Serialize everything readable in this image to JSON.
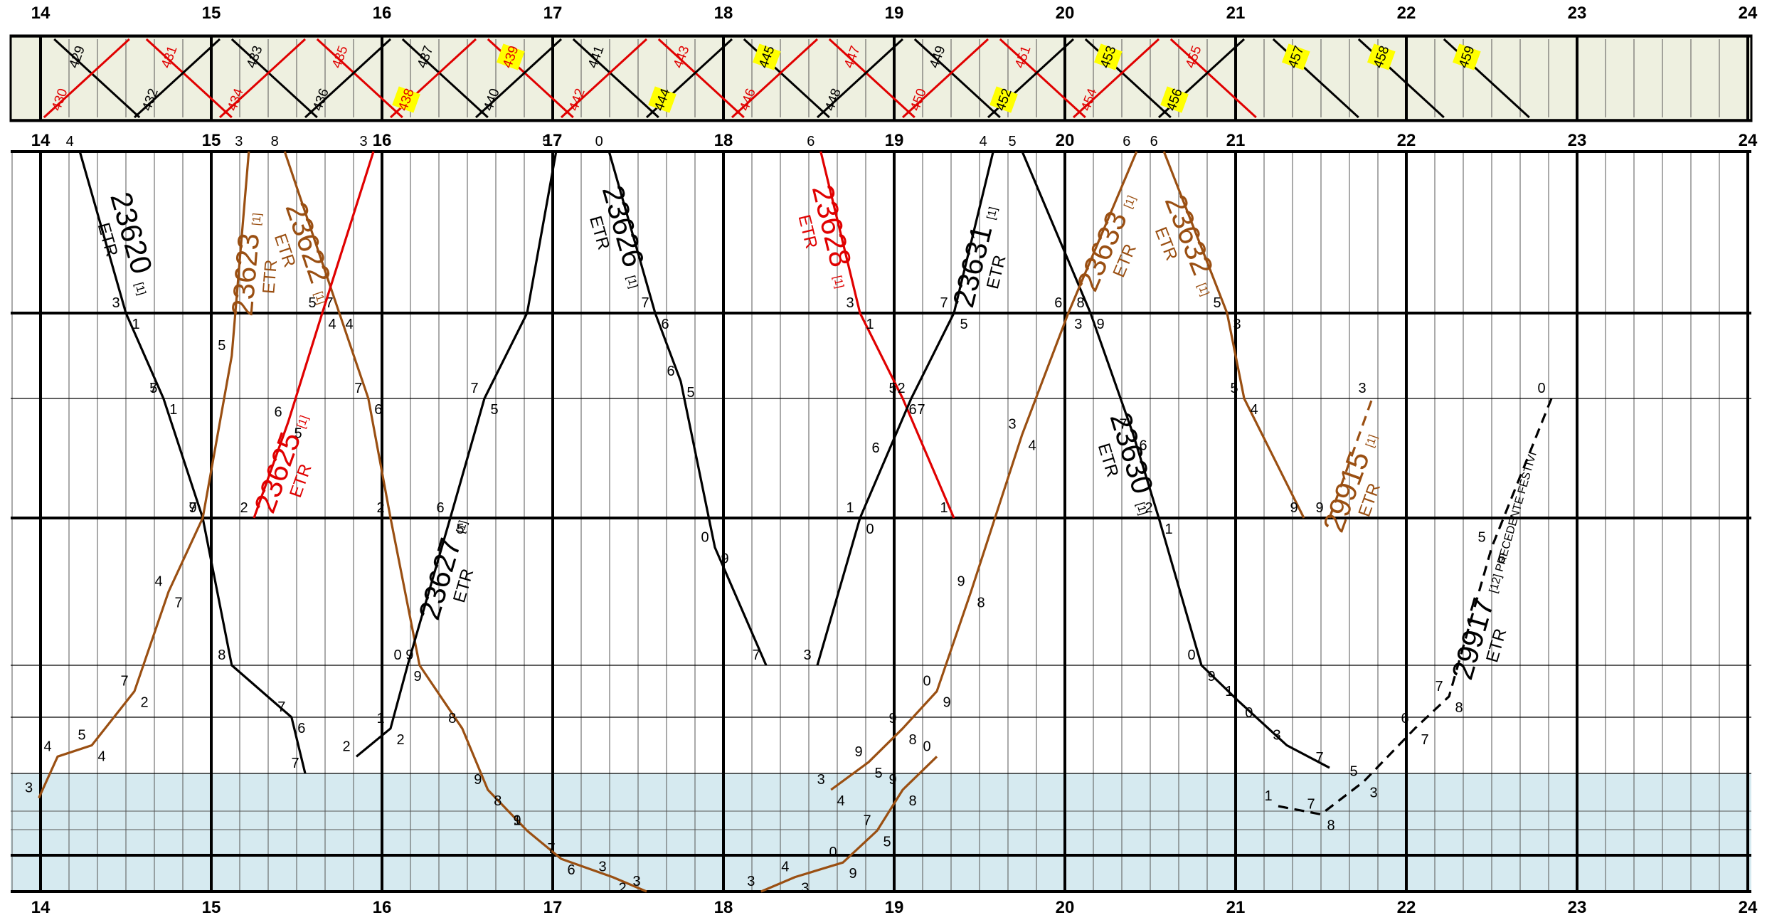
{
  "graph": {
    "hours": [
      "14",
      "15",
      "16",
      "17",
      "18",
      "19",
      "20",
      "21",
      "22",
      "23",
      "24"
    ]
  },
  "codes": [
    {
      "t": "429",
      "hr": 14.08,
      "up": true,
      "c": "#000000",
      "hl": false
    },
    {
      "t": "430",
      "hr": 14.02,
      "up": false,
      "c": "#e00000",
      "hl": false
    },
    {
      "t": "431",
      "hr": 14.62,
      "up": true,
      "c": "#e00000",
      "hl": false
    },
    {
      "t": "432",
      "hr": 14.55,
      "up": false,
      "c": "#000000",
      "hl": false
    },
    {
      "t": "433",
      "hr": 15.12,
      "up": true,
      "c": "#000000",
      "hl": false
    },
    {
      "t": "434",
      "hr": 15.05,
      "up": false,
      "c": "#e00000",
      "hl": false
    },
    {
      "t": "435",
      "hr": 15.62,
      "up": true,
      "c": "#e00000",
      "hl": false
    },
    {
      "t": "436",
      "hr": 15.55,
      "up": false,
      "c": "#000000",
      "hl": false
    },
    {
      "t": "437",
      "hr": 16.12,
      "up": true,
      "c": "#000000",
      "hl": false
    },
    {
      "t": "438",
      "hr": 16.05,
      "up": false,
      "c": "#e00000",
      "hl": true
    },
    {
      "t": "439",
      "hr": 16.62,
      "up": true,
      "c": "#e00000",
      "hl": true
    },
    {
      "t": "440",
      "hr": 16.55,
      "up": false,
      "c": "#000000",
      "hl": false
    },
    {
      "t": "441",
      "hr": 17.12,
      "up": true,
      "c": "#000000",
      "hl": false
    },
    {
      "t": "442",
      "hr": 17.05,
      "up": false,
      "c": "#e00000",
      "hl": false
    },
    {
      "t": "443",
      "hr": 17.62,
      "up": true,
      "c": "#e00000",
      "hl": false
    },
    {
      "t": "444",
      "hr": 17.55,
      "up": false,
      "c": "#000000",
      "hl": true
    },
    {
      "t": "445",
      "hr": 18.12,
      "up": true,
      "c": "#000000",
      "hl": true
    },
    {
      "t": "446",
      "hr": 18.05,
      "up": false,
      "c": "#e00000",
      "hl": false
    },
    {
      "t": "447",
      "hr": 18.62,
      "up": true,
      "c": "#e00000",
      "hl": false
    },
    {
      "t": "448",
      "hr": 18.55,
      "up": false,
      "c": "#000000",
      "hl": false
    },
    {
      "t": "449",
      "hr": 19.12,
      "up": true,
      "c": "#000000",
      "hl": false
    },
    {
      "t": "450",
      "hr": 19.05,
      "up": false,
      "c": "#e00000",
      "hl": false
    },
    {
      "t": "451",
      "hr": 19.62,
      "up": true,
      "c": "#e00000",
      "hl": false
    },
    {
      "t": "452",
      "hr": 19.55,
      "up": false,
      "c": "#000000",
      "hl": true
    },
    {
      "t": "453",
      "hr": 20.12,
      "up": true,
      "c": "#000000",
      "hl": true
    },
    {
      "t": "454",
      "hr": 20.05,
      "up": false,
      "c": "#e00000",
      "hl": false
    },
    {
      "t": "455",
      "hr": 20.62,
      "up": true,
      "c": "#e00000",
      "hl": false
    },
    {
      "t": "456",
      "hr": 20.55,
      "up": false,
      "c": "#000000",
      "hl": true
    },
    {
      "t": "457",
      "hr": 21.22,
      "up": true,
      "c": "#000000",
      "hl": true
    },
    {
      "t": "458",
      "hr": 21.72,
      "up": true,
      "c": "#000000",
      "hl": true
    },
    {
      "t": "459",
      "hr": 22.22,
      "up": true,
      "c": "#000000",
      "hl": true
    }
  ],
  "trains": [
    {
      "id": "23620",
      "c": "#000000",
      "dash": false,
      "pts": [
        [
          14.23,
          0
        ],
        [
          14.5,
          1
        ],
        [
          14.72,
          2
        ],
        [
          14.95,
          3
        ],
        [
          15.12,
          4
        ],
        [
          15.47,
          5
        ],
        [
          15.55,
          6
        ]
      ],
      "mins": [
        {
          "t": "4",
          "i": 0
        },
        {
          "t": "3",
          "i": 1
        },
        {
          "t": "1",
          "i": 1
        },
        {
          "t": "5",
          "i": 2
        },
        {
          "t": "1",
          "i": 2
        },
        {
          "t": "7",
          "i": 2
        },
        {
          "t": "9",
          "i": 3
        },
        {
          "t": "8",
          "i": 4
        },
        {
          "t": "7",
          "i": 5
        },
        {
          "t": "6",
          "i": 5
        },
        {
          "t": "7",
          "i": 6
        }
      ],
      "label": {
        "num": "23620",
        "suf": "ETR",
        "note": "[1]",
        "seg": 0,
        "fr": 0.55,
        "side": -1
      }
    },
    {
      "id": "23623",
      "c": "#9a4f12",
      "dash": false,
      "pts": [
        [
          13.99,
          6.3
        ],
        [
          14.1,
          5.7
        ],
        [
          14.3,
          5.5
        ],
        [
          14.55,
          4.5
        ],
        [
          14.75,
          3.5
        ],
        [
          14.95,
          3
        ],
        [
          15.12,
          1.5
        ],
        [
          15.22,
          0
        ]
      ],
      "mins": [
        {
          "t": "3",
          "i": 0
        },
        {
          "t": "4",
          "i": 1
        },
        {
          "t": "5",
          "i": 2
        },
        {
          "t": "4",
          "i": 2
        },
        {
          "t": "7",
          "i": 3
        },
        {
          "t": "2",
          "i": 3
        },
        {
          "t": "4",
          "i": 4
        },
        {
          "t": "7",
          "i": 4
        },
        {
          "t": "7",
          "i": 5
        },
        {
          "t": "5",
          "i": 6
        },
        {
          "t": "3",
          "i": 7
        }
      ],
      "label": {
        "num": "23623",
        "suf": "ETR",
        "note": "[1]",
        "seg": 6,
        "fr": 0.4,
        "side": 1
      }
    },
    {
      "id": "23622",
      "c": "#9a4f12",
      "dash": false,
      "pts": [
        [
          15.43,
          0
        ],
        [
          15.75,
          1
        ],
        [
          15.92,
          2
        ],
        [
          16.05,
          3
        ],
        [
          16.22,
          4
        ],
        [
          16.47,
          5.2
        ],
        [
          16.62,
          6.2
        ],
        [
          16.85,
          6.7
        ]
      ],
      "mins": [
        {
          "t": "8",
          "i": 0
        },
        {
          "t": "7",
          "i": 1
        },
        {
          "t": "4",
          "i": 1
        },
        {
          "t": "7",
          "i": 2
        },
        {
          "t": "6",
          "i": 2
        },
        {
          "t": "2",
          "i": 3
        },
        {
          "t": "9",
          "i": 4
        },
        {
          "t": "8",
          "i": 5
        },
        {
          "t": "9",
          "i": 6
        },
        {
          "t": "8",
          "i": 6
        },
        {
          "t": "1",
          "i": 7
        }
      ],
      "label": {
        "num": "23622",
        "suf": "ETR",
        "note": "[1]",
        "seg": 0,
        "fr": 0.55,
        "side": 1
      }
    },
    {
      "id": "23625",
      "c": "#e00000",
      "dash": false,
      "pts": [
        [
          15.95,
          0
        ],
        [
          15.65,
          1
        ],
        [
          15.45,
          2.2
        ],
        [
          15.25,
          3
        ]
      ],
      "mins": [
        {
          "t": "3",
          "i": 0
        },
        {
          "t": "5",
          "i": 1
        },
        {
          "t": "4",
          "i": 1
        },
        {
          "t": "6",
          "i": 2
        },
        {
          "t": "5",
          "i": 2
        },
        {
          "t": "2",
          "i": 3
        }
      ],
      "label": {
        "num": "23625",
        "suf": "ETR",
        "note": "[1]",
        "seg": 2,
        "fr": 0.5,
        "side": 1
      }
    },
    {
      "id": "23627",
      "c": "#000000",
      "dash": false,
      "pts": [
        [
          15.85,
          5.7
        ],
        [
          16.05,
          5.2
        ],
        [
          16.15,
          4
        ],
        [
          16.4,
          3
        ],
        [
          16.6,
          2
        ],
        [
          16.85,
          1
        ],
        [
          17.02,
          0
        ]
      ],
      "mins": [
        {
          "t": "2",
          "i": 0
        },
        {
          "t": "1",
          "i": 1
        },
        {
          "t": "2",
          "i": 1
        },
        {
          "t": "0",
          "i": 2
        },
        {
          "t": "9",
          "i": 2
        },
        {
          "t": "6",
          "i": 3
        },
        {
          "t": "5",
          "i": 3
        },
        {
          "t": "7",
          "i": 4
        },
        {
          "t": "5",
          "i": 4
        },
        {
          "t": "5",
          "i": 6
        }
      ],
      "label": {
        "num": "23627",
        "suf": "ETR",
        "note": "[1]",
        "seg": 2,
        "fr": 0.6,
        "side": 1
      }
    },
    {
      "id": "23626",
      "c": "#000000",
      "dash": false,
      "pts": [
        [
          17.33,
          0
        ],
        [
          17.6,
          1
        ],
        [
          17.75,
          1.8
        ],
        [
          17.95,
          3.2
        ],
        [
          18.25,
          4
        ]
      ],
      "mins": [
        {
          "t": "0",
          "i": 0
        },
        {
          "t": "7",
          "i": 1
        },
        {
          "t": "6",
          "i": 1
        },
        {
          "t": "6",
          "i": 2
        },
        {
          "t": "5",
          "i": 2
        },
        {
          "t": "0",
          "i": 3
        },
        {
          "t": "9",
          "i": 3
        },
        {
          "t": "7",
          "i": 4
        }
      ],
      "label": {
        "num": "23626",
        "suf": "ETR",
        "note": "[1]",
        "seg": 0,
        "fr": 0.45,
        "side": 1
      }
    },
    {
      "id": "23628",
      "c": "#e00000",
      "dash": false,
      "pts": [
        [
          18.57,
          0
        ],
        [
          18.8,
          1
        ],
        [
          19.05,
          2
        ],
        [
          19.35,
          3
        ]
      ],
      "mins": [
        {
          "t": "6",
          "i": 0
        },
        {
          "t": "3",
          "i": 1
        },
        {
          "t": "1",
          "i": 1
        },
        {
          "t": "5",
          "i": 2
        },
        {
          "t": "6",
          "i": 2
        },
        {
          "t": "1",
          "i": 3
        }
      ],
      "label": {
        "num": "23628",
        "suf": "ETR",
        "note": "[1]",
        "seg": 0,
        "fr": 0.45,
        "side": 1
      }
    },
    {
      "id": "23631",
      "c": "#000000",
      "dash": false,
      "pts": [
        [
          18.55,
          4
        ],
        [
          18.8,
          3
        ],
        [
          18.95,
          2.5
        ],
        [
          19.1,
          2
        ],
        [
          19.35,
          1
        ],
        [
          19.58,
          0
        ]
      ],
      "mins": [
        {
          "t": "3",
          "i": 0
        },
        {
          "t": "1",
          "i": 1
        },
        {
          "t": "0",
          "i": 1
        },
        {
          "t": "6",
          "i": 2
        },
        {
          "t": "2",
          "i": 3
        },
        {
          "t": "7",
          "i": 3
        },
        {
          "t": "7",
          "i": 4
        },
        {
          "t": "5",
          "i": 4
        },
        {
          "t": "4",
          "i": 5
        }
      ],
      "label": {
        "num": "23631",
        "suf": "ETR",
        "note": "[1]",
        "seg": 4,
        "fr": 0.3,
        "side": 1
      }
    },
    {
      "id": "23630",
      "c": "#000000",
      "dash": false,
      "pts": [
        [
          19.75,
          0
        ],
        [
          20.15,
          1
        ],
        [
          20.4,
          2.3
        ],
        [
          20.55,
          3
        ],
        [
          20.8,
          4
        ],
        [
          21.02,
          4.7
        ],
        [
          21.3,
          5.5
        ],
        [
          21.55,
          5.9
        ]
      ],
      "mins": [
        {
          "t": "5",
          "i": 0
        },
        {
          "t": "8",
          "i": 1
        },
        {
          "t": "9",
          "i": 1
        },
        {
          "t": "7",
          "i": 2
        },
        {
          "t": "6",
          "i": 2
        },
        {
          "t": "2",
          "i": 3
        },
        {
          "t": "1",
          "i": 3
        },
        {
          "t": "0",
          "i": 4
        },
        {
          "t": "9",
          "i": 4
        },
        {
          "t": "1",
          "i": 5
        },
        {
          "t": "0",
          "i": 5
        },
        {
          "t": "3",
          "i": 6
        },
        {
          "t": "7",
          "i": 7
        }
      ],
      "label": {
        "num": "23630",
        "suf": "ETR",
        "note": "[1]",
        "seg": 2,
        "fr": 0.2,
        "side": 1
      }
    },
    {
      "id": "23633",
      "c": "#9a4f12",
      "dash": false,
      "pts": [
        [
          18.63,
          6.2
        ],
        [
          18.85,
          5.8
        ],
        [
          19.05,
          5.2
        ],
        [
          19.25,
          4.5
        ],
        [
          19.45,
          3.5
        ],
        [
          19.75,
          2.3
        ],
        [
          20.02,
          1
        ],
        [
          20.42,
          0
        ]
      ],
      "mins": [
        {
          "t": "3",
          "i": 0
        },
        {
          "t": "4",
          "i": 0
        },
        {
          "t": "9",
          "i": 1
        },
        {
          "t": "5",
          "i": 1
        },
        {
          "t": "9",
          "i": 2
        },
        {
          "t": "8",
          "i": 2
        },
        {
          "t": "0",
          "i": 3
        },
        {
          "t": "9",
          "i": 3
        },
        {
          "t": "9",
          "i": 4
        },
        {
          "t": "8",
          "i": 4
        },
        {
          "t": "3",
          "i": 5
        },
        {
          "t": "4",
          "i": 5
        },
        {
          "t": "6",
          "i": 6
        },
        {
          "t": "3",
          "i": 6
        },
        {
          "t": "6",
          "i": 7
        }
      ],
      "label": {
        "num": "23633",
        "suf": "ETR",
        "note": "[1]",
        "seg": 6,
        "fr": 0.4,
        "side": 1
      }
    },
    {
      "id": "23632",
      "c": "#9a4f12",
      "dash": false,
      "pts": [
        [
          20.58,
          0
        ],
        [
          20.95,
          1
        ],
        [
          21.05,
          2
        ],
        [
          21.4,
          3
        ]
      ],
      "mins": [
        {
          "t": "6",
          "i": 0
        },
        {
          "t": "5",
          "i": 1
        },
        {
          "t": "3",
          "i": 1
        },
        {
          "t": "5",
          "i": 2
        },
        {
          "t": "4",
          "i": 2
        },
        {
          "t": "9",
          "i": 3
        }
      ],
      "label": {
        "num": "23632",
        "suf": "ETR",
        "note": "[1]",
        "seg": 0,
        "fr": 0.5,
        "side": 1
      }
    },
    {
      "id": "29915",
      "c": "#9a4f12",
      "dash": true,
      "pts": [
        [
          21.55,
          3
        ],
        [
          21.75,
          2.2
        ],
        [
          21.8,
          2
        ]
      ],
      "mins": [
        {
          "t": "9",
          "i": 0
        },
        {
          "t": "3",
          "i": 2
        }
      ],
      "label": {
        "num": "29915",
        "suf": "ETR",
        "note": "[1]",
        "seg": 0,
        "fr": 0.3,
        "side": 1
      }
    },
    {
      "id": "29917",
      "c": "#000000",
      "dash": true,
      "pts": [
        [
          21.25,
          6.4
        ],
        [
          21.5,
          6.5
        ],
        [
          21.75,
          6.1
        ],
        [
          22.05,
          5.2
        ],
        [
          22.25,
          4.6
        ],
        [
          22.5,
          3.2
        ],
        [
          22.85,
          2
        ]
      ],
      "mins": [
        {
          "t": "1",
          "i": 0
        },
        {
          "t": "7",
          "i": 1
        },
        {
          "t": "8",
          "i": 1
        },
        {
          "t": "5",
          "i": 2
        },
        {
          "t": "3",
          "i": 2
        },
        {
          "t": "6",
          "i": 3
        },
        {
          "t": "7",
          "i": 3
        },
        {
          "t": "7",
          "i": 4
        },
        {
          "t": "8",
          "i": 4
        },
        {
          "t": "5",
          "i": 5
        },
        {
          "t": "6",
          "i": 5
        },
        {
          "t": "0",
          "i": 6
        }
      ],
      "label": {
        "num": "29917",
        "suf": "ETR",
        "note": "[12] PRECEDENTE FESTIVI",
        "seg": 4,
        "fr": 0.4,
        "side": 1
      }
    },
    {
      "id": "blue_a",
      "c": "#9a4f12",
      "dash": false,
      "pts": [
        [
          16.85,
          6.7
        ],
        [
          17.05,
          7.1
        ],
        [
          17.35,
          7.6
        ],
        [
          17.55,
          8
        ]
      ],
      "mins": [
        {
          "t": "9",
          "i": 0
        },
        {
          "t": "7",
          "i": 1
        },
        {
          "t": "6",
          "i": 1
        },
        {
          "t": "3",
          "i": 2
        },
        {
          "t": "2",
          "i": 2
        },
        {
          "t": "3",
          "i": 3
        }
      ],
      "label": null
    },
    {
      "id": "blue_b",
      "c": "#9a4f12",
      "dash": false,
      "pts": [
        [
          18.22,
          8
        ],
        [
          18.42,
          7.6
        ],
        [
          18.7,
          7.2
        ],
        [
          18.9,
          6.7
        ],
        [
          19.05,
          6.2
        ],
        [
          19.25,
          5.7
        ]
      ],
      "mins": [
        {
          "t": "3",
          "i": 0
        },
        {
          "t": "4",
          "i": 1
        },
        {
          "t": "3",
          "i": 1
        },
        {
          "t": "0",
          "i": 2
        },
        {
          "t": "9",
          "i": 2
        },
        {
          "t": "7",
          "i": 3
        },
        {
          "t": "5",
          "i": 3
        },
        {
          "t": "9",
          "i": 4
        },
        {
          "t": "8",
          "i": 4
        },
        {
          "t": "0",
          "i": 5
        }
      ],
      "label": null
    }
  ]
}
